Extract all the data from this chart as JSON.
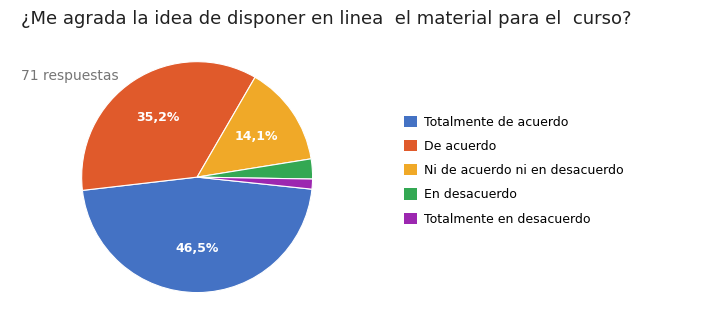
{
  "title": "¿Me agrada la idea de disponer en linea  el material para el  curso?",
  "subtitle": "71 respuestas",
  "labels": [
    "Totalmente de acuerdo",
    "De acuerdo",
    "Ni de acuerdo ni en desacuerdo",
    "En desacuerdo",
    "Totalmente en desacuerdo"
  ],
  "percentages": [
    46.5,
    35.2,
    14.1,
    2.8,
    1.4
  ],
  "colors": [
    "#4472C4",
    "#E05A2B",
    "#F0A928",
    "#33A853",
    "#9C27B0"
  ],
  "pct_labels": [
    "46,5%",
    "35,2%",
    "14,1%",
    "",
    ""
  ],
  "title_fontsize": 13,
  "subtitle_fontsize": 10,
  "legend_fontsize": 9
}
